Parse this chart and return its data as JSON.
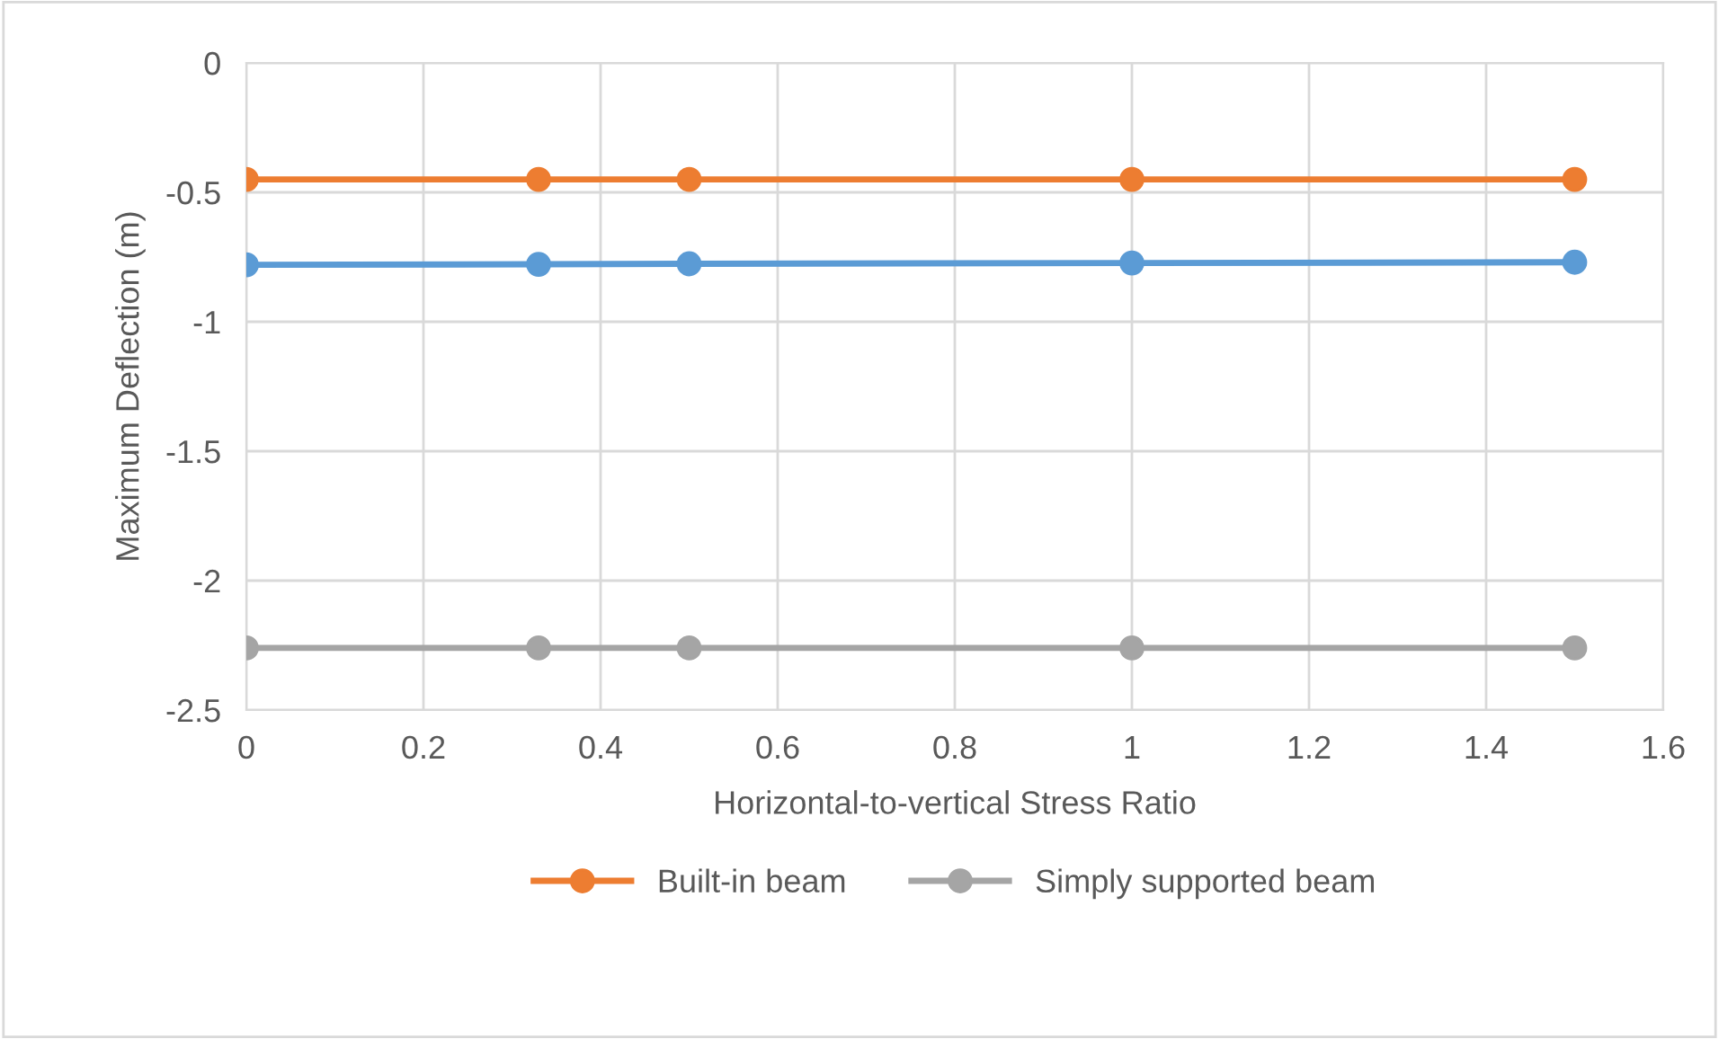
{
  "chart_data": {
    "type": "line",
    "xlabel": "Horizontal-to-vertical Stress Ratio",
    "ylabel": "Maximum Deflection (m)",
    "xlim": [
      0,
      1.6
    ],
    "xticks": [
      0,
      0.2,
      0.4,
      0.6,
      0.8,
      1,
      1.2,
      1.4,
      1.6
    ],
    "ylim": [
      -2.5,
      0
    ],
    "yticks": [
      -2.5,
      -2,
      -1.5,
      -1,
      -0.5,
      0
    ],
    "grid": true,
    "legend": "bottom",
    "marker": "circle",
    "line_style": "solid",
    "series": [
      {
        "color": "#5b9bd5",
        "x": [
          0,
          0.33,
          0.5,
          1,
          1.5
        ],
        "values": [
          -0.78,
          -0.778,
          -0.776,
          -0.773,
          -0.77
        ]
      },
      {
        "name": "Built-in beam",
        "color": "#ed7d31",
        "x": [
          0,
          0.33,
          0.5,
          1,
          1.5
        ],
        "values": [
          -0.45,
          -0.45,
          -0.45,
          -0.45,
          -0.45
        ]
      },
      {
        "name": "Simply supported beam",
        "color": "#a5a5a5",
        "x": [
          0,
          0.33,
          0.5,
          1,
          1.5
        ],
        "values": [
          -2.26,
          -2.26,
          -2.26,
          -2.26,
          -2.26
        ]
      }
    ]
  }
}
